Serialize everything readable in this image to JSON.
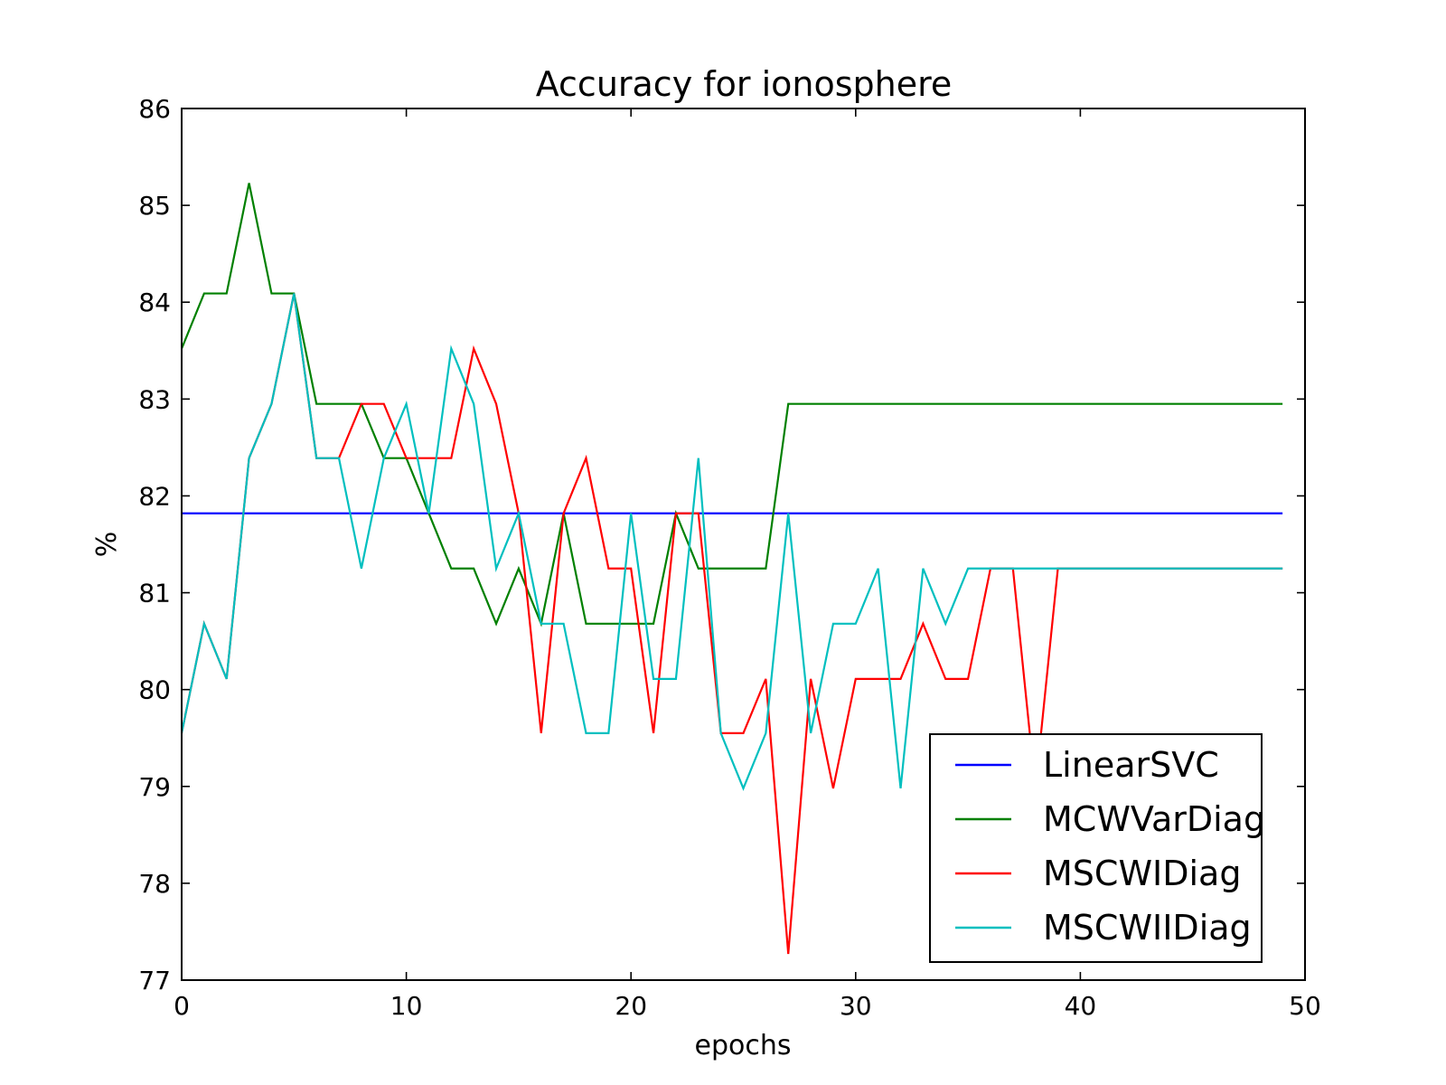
{
  "chart_data": {
    "type": "line",
    "title": "Accuracy for ionosphere",
    "xlabel": "epochs",
    "ylabel": "%",
    "xlim": [
      0,
      50
    ],
    "ylim": [
      77,
      86
    ],
    "xticks": [
      0,
      10,
      20,
      30,
      40,
      50
    ],
    "yticks": [
      77,
      78,
      79,
      80,
      81,
      82,
      83,
      84,
      85,
      86
    ],
    "grid": false,
    "legend_position": "lower-right",
    "x": [
      0,
      1,
      2,
      3,
      4,
      5,
      6,
      7,
      8,
      9,
      10,
      11,
      12,
      13,
      14,
      15,
      16,
      17,
      18,
      19,
      20,
      21,
      22,
      23,
      24,
      25,
      26,
      27,
      28,
      29,
      30,
      31,
      32,
      33,
      34,
      35,
      36,
      37,
      38,
      39,
      40,
      41,
      42,
      43,
      44,
      45,
      46,
      47,
      48,
      49
    ],
    "series": [
      {
        "name": "LinearSVC",
        "color": "#0000ff",
        "values": [
          81.82,
          81.82,
          81.82,
          81.82,
          81.82,
          81.82,
          81.82,
          81.82,
          81.82,
          81.82,
          81.82,
          81.82,
          81.82,
          81.82,
          81.82,
          81.82,
          81.82,
          81.82,
          81.82,
          81.82,
          81.82,
          81.82,
          81.82,
          81.82,
          81.82,
          81.82,
          81.82,
          81.82,
          81.82,
          81.82,
          81.82,
          81.82,
          81.82,
          81.82,
          81.82,
          81.82,
          81.82,
          81.82,
          81.82,
          81.82,
          81.82,
          81.82,
          81.82,
          81.82,
          81.82,
          81.82,
          81.82,
          81.82,
          81.82,
          81.82
        ]
      },
      {
        "name": "MCWVarDiag",
        "color": "#008000",
        "values": [
          83.52,
          84.09,
          84.09,
          85.23,
          84.09,
          84.09,
          82.95,
          82.95,
          82.95,
          82.39,
          82.39,
          81.82,
          81.25,
          81.25,
          80.68,
          81.25,
          80.68,
          81.82,
          80.68,
          80.68,
          80.68,
          80.68,
          81.82,
          81.25,
          81.25,
          81.25,
          81.25,
          82.95,
          82.95,
          82.95,
          82.95,
          82.95,
          82.95,
          82.95,
          82.95,
          82.95,
          82.95,
          82.95,
          82.95,
          82.95,
          82.95,
          82.95,
          82.95,
          82.95,
          82.95,
          82.95,
          82.95,
          82.95,
          82.95,
          82.95
        ]
      },
      {
        "name": "MSCWIDiag",
        "color": "#ff0000",
        "values": [
          79.55,
          80.68,
          80.11,
          82.39,
          82.95,
          84.09,
          82.39,
          82.39,
          82.95,
          82.95,
          82.39,
          82.39,
          82.39,
          83.52,
          82.95,
          81.82,
          79.55,
          81.82,
          82.39,
          81.25,
          81.25,
          79.55,
          81.82,
          81.82,
          79.55,
          79.55,
          80.11,
          77.27,
          80.11,
          78.98,
          80.11,
          80.11,
          80.11,
          80.68,
          80.11,
          80.11,
          81.25,
          81.25,
          78.98,
          81.25,
          81.25,
          81.25,
          81.25,
          81.25,
          81.25,
          81.25,
          81.25,
          81.25,
          81.25,
          81.25
        ]
      },
      {
        "name": "MSCWIIDiag",
        "color": "#00bfbf",
        "values": [
          79.55,
          80.68,
          80.11,
          82.39,
          82.95,
          84.09,
          82.39,
          82.39,
          81.25,
          82.39,
          82.95,
          81.82,
          83.52,
          82.95,
          81.25,
          81.82,
          80.68,
          80.68,
          79.55,
          79.55,
          81.82,
          80.11,
          80.11,
          82.39,
          79.55,
          78.98,
          79.55,
          81.82,
          79.55,
          80.68,
          80.68,
          81.25,
          78.98,
          81.25,
          80.68,
          81.25,
          81.25,
          81.25,
          81.25,
          81.25,
          81.25,
          81.25,
          81.25,
          81.25,
          81.25,
          81.25,
          81.25,
          81.25,
          81.25,
          81.25
        ]
      }
    ]
  }
}
